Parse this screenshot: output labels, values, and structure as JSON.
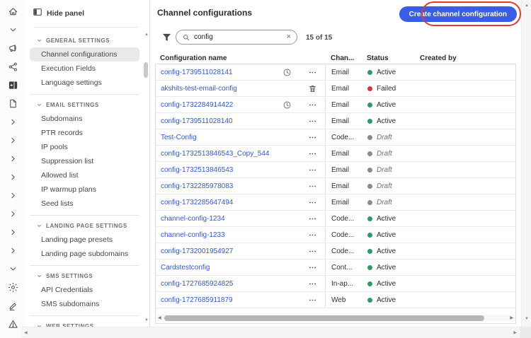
{
  "colors": {
    "accent_blue": "#3a5ce8",
    "annotation_red": "#e6392e",
    "link_blue": "#3456d6",
    "status_active": "#2d9d64",
    "status_failed": "#d2373b",
    "status_draft": "#8a8a8a"
  },
  "rail": {
    "icons": [
      {
        "name": "home-icon"
      },
      {
        "name": "chevron-down-icon"
      },
      {
        "name": "megaphone-icon"
      },
      {
        "name": "data-flow-icon"
      },
      {
        "name": "assets-icon"
      },
      {
        "name": "document-icon"
      },
      {
        "name": "chevron-right-icon"
      },
      {
        "name": "chevron-right-icon"
      },
      {
        "name": "chevron-right-icon"
      },
      {
        "name": "chevron-right-icon"
      },
      {
        "name": "chevron-right-icon"
      },
      {
        "name": "chevron-right-icon"
      },
      {
        "name": "chevron-right-icon"
      },
      {
        "name": "chevron-right-icon"
      },
      {
        "name": "chevron-down-icon"
      },
      {
        "name": "gear-icon"
      },
      {
        "name": "signature-pen-icon"
      },
      {
        "name": "warning-triangle-icon"
      }
    ]
  },
  "sidebar": {
    "hide_panel_label": "Hide panel",
    "sections": [
      {
        "label": "GENERAL SETTINGS",
        "items": [
          {
            "label": "Channel configurations",
            "selected": true
          },
          {
            "label": "Execution Fields",
            "selected": false
          },
          {
            "label": "Language settings",
            "selected": false
          }
        ]
      },
      {
        "label": "EMAIL SETTINGS",
        "items": [
          {
            "label": "Subdomains",
            "selected": false
          },
          {
            "label": "PTR records",
            "selected": false
          },
          {
            "label": "IP pools",
            "selected": false
          },
          {
            "label": "Suppression list",
            "selected": false
          },
          {
            "label": "Allowed list",
            "selected": false
          },
          {
            "label": "IP warmup plans",
            "selected": false
          },
          {
            "label": "Seed lists",
            "selected": false
          }
        ]
      },
      {
        "label": "LANDING PAGE SETTINGS",
        "items": [
          {
            "label": "Landing page presets",
            "selected": false
          },
          {
            "label": "Landing page subdomains",
            "selected": false
          }
        ]
      },
      {
        "label": "SMS SETTINGS",
        "items": [
          {
            "label": "API Credentials",
            "selected": false
          },
          {
            "label": "SMS subdomains",
            "selected": false
          }
        ]
      },
      {
        "label": "WEB SETTINGS",
        "items": []
      }
    ]
  },
  "main": {
    "title": "Channel configurations",
    "create_button_label": "Create channel configuration",
    "search": {
      "value": "config",
      "clear_glyph": "×"
    },
    "count_label": "15 of 15"
  },
  "table": {
    "headers": {
      "name": "Configuration name",
      "channel": "Chan...",
      "status": "Status",
      "created_by": "Created by"
    },
    "rows": [
      {
        "name": "config-1739511028141",
        "clock": true,
        "action": "menu",
        "channel": "Email",
        "status_label": "Active",
        "status_state": "active",
        "created_by": ""
      },
      {
        "name": "akshits-test-email-config",
        "clock": false,
        "action": "trash",
        "channel": "Email",
        "status_label": "Failed",
        "status_state": "failed",
        "created_by": ""
      },
      {
        "name": "config-1732284914422",
        "clock": true,
        "action": "menu",
        "channel": "Email",
        "status_label": "Active",
        "status_state": "active",
        "created_by": ""
      },
      {
        "name": "config-1739511028140",
        "clock": false,
        "action": "menu",
        "channel": "Email",
        "status_label": "Active",
        "status_state": "active",
        "created_by": ""
      },
      {
        "name": "Test-Config",
        "clock": false,
        "action": "menu",
        "channel": "Code...",
        "status_label": "Draft",
        "status_state": "draft",
        "created_by": ""
      },
      {
        "name": "config-1732513846543_Copy_544",
        "clock": false,
        "action": "menu",
        "channel": "Email",
        "status_label": "Draft",
        "status_state": "draft",
        "created_by": ""
      },
      {
        "name": "config-1732513846543",
        "clock": false,
        "action": "menu",
        "channel": "Email",
        "status_label": "Draft",
        "status_state": "draft",
        "created_by": ""
      },
      {
        "name": "config-1732285978083",
        "clock": false,
        "action": "menu",
        "channel": "Email",
        "status_label": "Draft",
        "status_state": "draft",
        "created_by": ""
      },
      {
        "name": "config-1732285647494",
        "clock": false,
        "action": "menu",
        "channel": "Email",
        "status_label": "Draft",
        "status_state": "draft",
        "created_by": ""
      },
      {
        "name": "channel-config-1234",
        "clock": false,
        "action": "menu",
        "channel": "Code...",
        "status_label": "Active",
        "status_state": "active",
        "created_by": ""
      },
      {
        "name": "channel-config-1233",
        "clock": false,
        "action": "menu",
        "channel": "Code...",
        "status_label": "Active",
        "status_state": "active",
        "created_by": ""
      },
      {
        "name": "config-1732001954927",
        "clock": false,
        "action": "menu",
        "channel": "Code...",
        "status_label": "Active",
        "status_state": "active",
        "created_by": ""
      },
      {
        "name": "Cardstestconfig",
        "clock": false,
        "action": "menu",
        "channel": "Cont...",
        "status_label": "Active",
        "status_state": "active",
        "created_by": ""
      },
      {
        "name": "config-1727685924825",
        "clock": false,
        "action": "menu",
        "channel": "In-ap...",
        "status_label": "Active",
        "status_state": "active",
        "created_by": ""
      },
      {
        "name": "config-1727685911879",
        "clock": false,
        "action": "menu",
        "channel": "Web",
        "status_label": "Active",
        "status_state": "active",
        "created_by": ""
      }
    ]
  }
}
